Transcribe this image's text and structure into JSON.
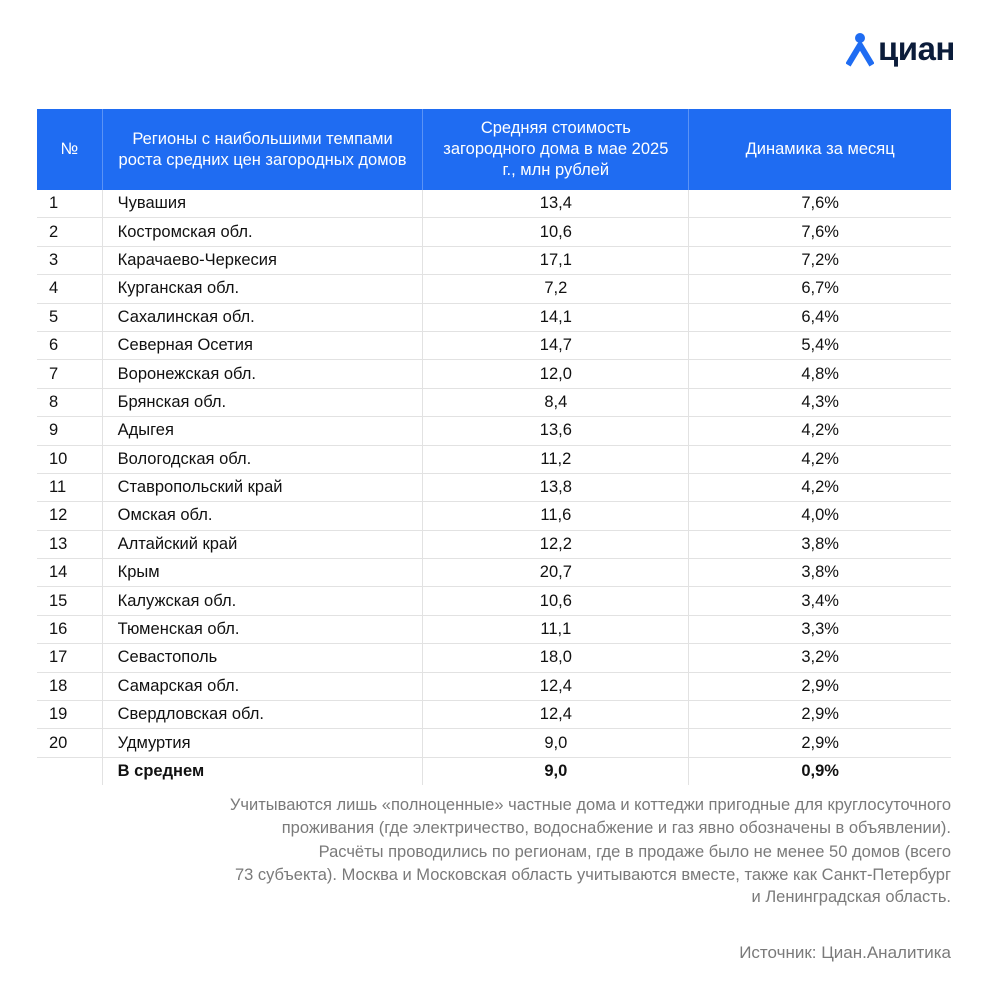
{
  "logo": {
    "text": "циан"
  },
  "table": {
    "header": [
      "№",
      "Регионы с наибольшими темпами роста средних цен загородных домов",
      "Средняя стоимость загородного дома в мае 2025 г., млн рублей",
      "Динамика за месяц"
    ],
    "rows": [
      [
        "1",
        "Чувашия",
        "13,4",
        "7,6%"
      ],
      [
        "2",
        "Костромская обл.",
        "10,6",
        "7,6%"
      ],
      [
        "3",
        "Карачаево-Черкесия",
        "17,1",
        "7,2%"
      ],
      [
        "4",
        "Курганская обл.",
        "7,2",
        "6,7%"
      ],
      [
        "5",
        "Сахалинская обл.",
        "14,1",
        "6,4%"
      ],
      [
        "6",
        "Северная Осетия",
        "14,7",
        "5,4%"
      ],
      [
        "7",
        "Воронежская обл.",
        "12,0",
        "4,8%"
      ],
      [
        "8",
        "Брянская обл.",
        "8,4",
        "4,3%"
      ],
      [
        "9",
        "Адыгея",
        "13,6",
        "4,2%"
      ],
      [
        "10",
        "Вологодская обл.",
        "11,2",
        "4,2%"
      ],
      [
        "11",
        "Ставропольский край",
        "13,8",
        "4,2%"
      ],
      [
        "12",
        "Омская обл.",
        "11,6",
        "4,0%"
      ],
      [
        "13",
        "Алтайский край",
        "12,2",
        "3,8%"
      ],
      [
        "14",
        "Крым",
        "20,7",
        "3,8%"
      ],
      [
        "15",
        "Калужская обл.",
        "10,6",
        "3,4%"
      ],
      [
        "16",
        "Тюменская обл.",
        "11,1",
        "3,3%"
      ],
      [
        "17",
        "Севастополь",
        "18,0",
        "3,2%"
      ],
      [
        "18",
        "Самарская обл.",
        "12,4",
        "2,9%"
      ],
      [
        "19",
        "Свердловская обл.",
        "12,4",
        "2,9%"
      ],
      [
        "20",
        "Удмуртия",
        "9,0",
        "2,9%"
      ]
    ],
    "average": [
      "В среднем",
      "9,0",
      "0,9%"
    ]
  },
  "notes": [
    [
      "Учитываются лишь «полноценные» частные дома и коттеджи пригодные для круглосуточного",
      "проживания (где электричество, водоснабжение и газ явно обозначены в объявлении)."
    ],
    [
      "Расчёты проводились по регионам, где в продаже было не менее 50 домов (всего",
      "73 субъекта). Москва и Московская область учитываются вместе, также как Санкт-Петербург",
      "и Ленинградская область."
    ]
  ],
  "source": "Источник: Циан.Аналитика"
}
